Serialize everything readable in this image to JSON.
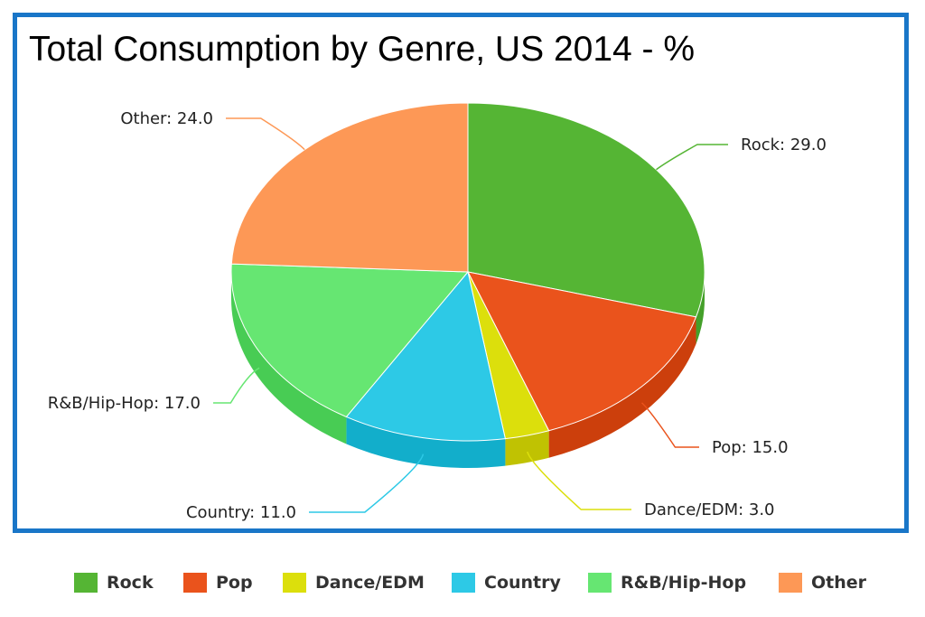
{
  "chart_data": {
    "type": "pie",
    "title": "Total Consumption by Genre, US 2014 - %",
    "series": [
      {
        "name": "Rock",
        "value": 29.0,
        "label": "Rock: 29.0",
        "color": "#55b534",
        "side": "#44a02a"
      },
      {
        "name": "Pop",
        "value": 15.0,
        "label": "Pop: 15.0",
        "color": "#ea531c",
        "side": "#cc3f0c"
      },
      {
        "name": "Dance/EDM",
        "value": 3.0,
        "label": "Dance/EDM: 3.0",
        "color": "#dcdf0c",
        "side": "#c0c202"
      },
      {
        "name": "Country",
        "value": 11.0,
        "label": "Country: 11.0",
        "color": "#2dc9e6",
        "side": "#12aecb"
      },
      {
        "name": "R&B/Hip-Hop",
        "value": 17.0,
        "label": "R&B/Hip-Hop: 17.0",
        "color": "#66e672",
        "side": "#48cc54"
      },
      {
        "name": "Other",
        "value": 24.0,
        "label": "Other: 24.0",
        "color": "#fd9856",
        "side": "#e57c3a"
      }
    ],
    "legend_position": "bottom",
    "grid": false,
    "style": "3d"
  }
}
